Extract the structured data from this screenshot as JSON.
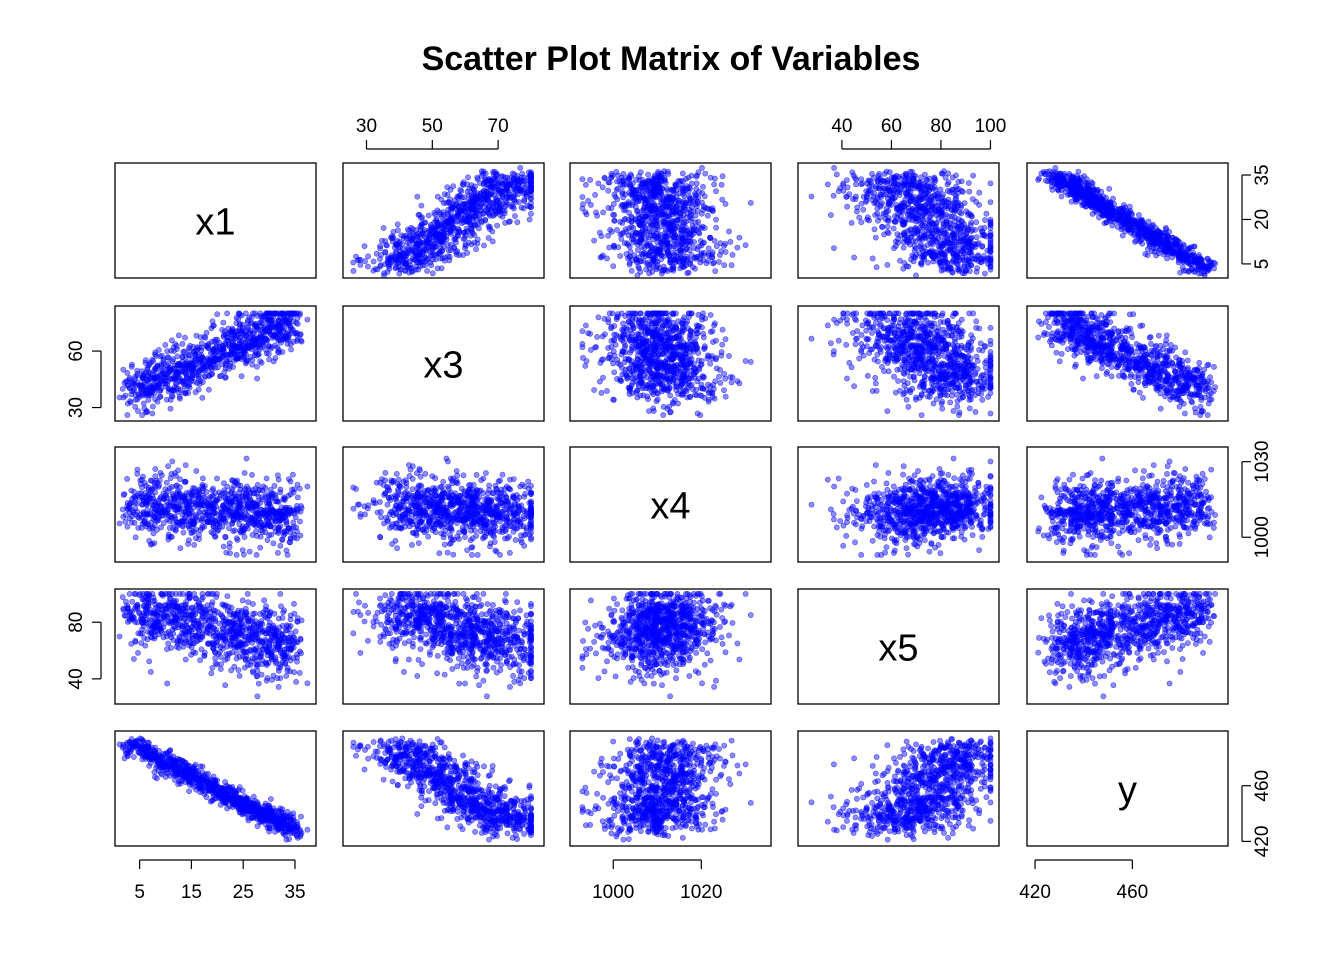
{
  "chart_data": {
    "type": "scatter",
    "title": "Scatter Plot Matrix of Variables",
    "variables": [
      "x1",
      "x3",
      "x4",
      "x5",
      "y"
    ],
    "ranges": {
      "x1": [
        1.8,
        37.5
      ],
      "x3": [
        25.3,
        81.5
      ],
      "x4": [
        992,
        1034
      ],
      "x5": [
        25.5,
        100.2
      ],
      "y": [
        420,
        496
      ]
    },
    "ticks": {
      "x1": [
        "5",
        "15",
        "25",
        "35"
      ],
      "x3": [
        "30",
        "50",
        "70"
      ],
      "x4": [
        "1000",
        "1020"
      ],
      "x5": [
        "40",
        "60",
        "80",
        "100"
      ],
      "y": [
        "420",
        "460"
      ],
      "x1_right": [
        "5",
        "20",
        "35"
      ],
      "x3_left": [
        "30",
        "60"
      ],
      "x4_right": [
        "1000",
        "1030"
      ],
      "x5_left": [
        "40",
        "80"
      ],
      "y_right": [
        "420",
        "460"
      ]
    },
    "point_color": "#0000FF",
    "point_alpha": 0.45,
    "grid": false,
    "description_points": {
      "x1": [
        3,
        5,
        8,
        10,
        12,
        15,
        18,
        20,
        22,
        25,
        28,
        30,
        32,
        35
      ],
      "x3": [
        38,
        40,
        42,
        45,
        48,
        52,
        55,
        58,
        62,
        66,
        70,
        73,
        76,
        78
      ],
      "x4": [
        1008,
        1012,
        1010,
        1015,
        1013,
        1012,
        1011,
        1014,
        1010,
        1009,
        1012,
        1011,
        1013,
        1010
      ],
      "x5": [
        92,
        90,
        88,
        85,
        82,
        80,
        76,
        74,
        70,
        66,
        62,
        60,
        58,
        55
      ],
      "y": [
        488,
        484,
        478,
        474,
        470,
        463,
        457,
        452,
        447,
        441,
        436,
        432,
        430,
        428
      ]
    }
  }
}
